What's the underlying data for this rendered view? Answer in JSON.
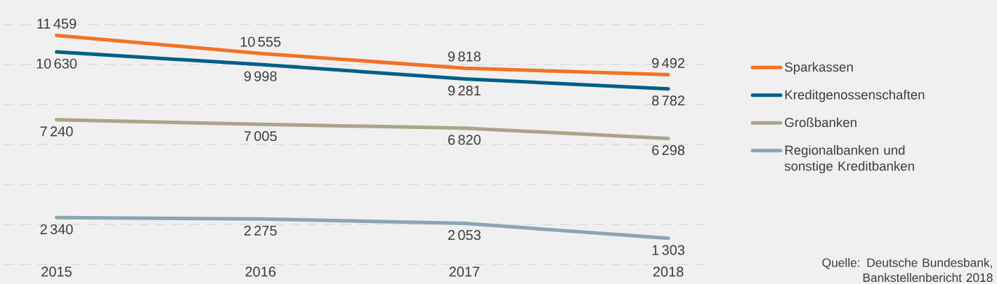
{
  "chart_data": {
    "type": "line",
    "categories": [
      "2015",
      "2016",
      "2017",
      "2018"
    ],
    "series": [
      {
        "name": "Sparkassen",
        "color": "#f47124",
        "values": [
          11459,
          10555,
          9818,
          9492
        ]
      },
      {
        "name": "Kreditgenossenschaften",
        "color": "#005f87",
        "values": [
          10630,
          9998,
          9281,
          8782
        ]
      },
      {
        "name": "Großbanken",
        "color": "#ada38a",
        "values": [
          7240,
          7005,
          6820,
          6298
        ]
      },
      {
        "name": "Regionalbanken und sonstige Kreditbanken",
        "color": "#8ba5b3",
        "values": [
          2340,
          2275,
          2053,
          1303
        ]
      }
    ],
    "ylim": [
      0,
      12000
    ],
    "yticks": [
      {
        "value": 0,
        "label": null
      },
      {
        "value": 2000,
        "label": null
      },
      {
        "value": 4000,
        "label": null
      },
      {
        "value": 6000,
        "label": null
      },
      {
        "value": 8000,
        "label": null
      },
      {
        "value": 10000,
        "label": null
      },
      {
        "value": 12000,
        "label": null
      }
    ],
    "tick_labels": "x",
    "grid": "y",
    "legend": "right",
    "data_labels": true,
    "annotations": [
      "Quelle: Deutsche Bundesbank, Bankstellenbericht 2018"
    ]
  }
}
